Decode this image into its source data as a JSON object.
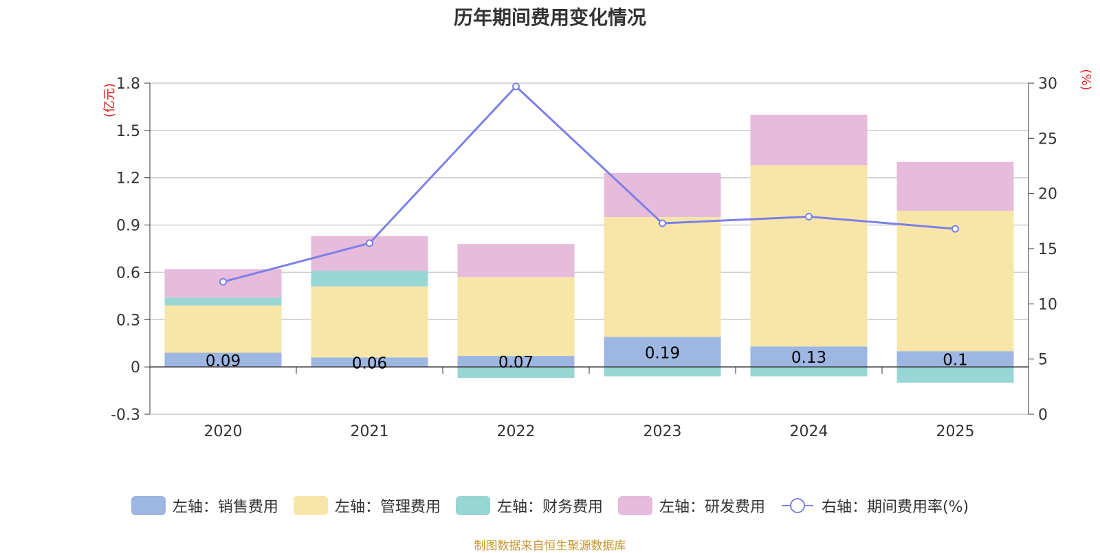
{
  "chart_data": {
    "type": "bar",
    "title": "历年期间费用变化情况",
    "categories": [
      "2020",
      "2021",
      "2022",
      "2023",
      "2024",
      "2025"
    ],
    "left_axis": {
      "label": "(亿元)",
      "range": [
        -0.3,
        1.8
      ],
      "ticks": [
        "-0.3",
        "0",
        "0.3",
        "0.6",
        "0.9",
        "1.2",
        "1.5",
        "1.8"
      ],
      "tick_values": [
        -0.3,
        0,
        0.3,
        0.6,
        0.9,
        1.2,
        1.5,
        1.8
      ]
    },
    "right_axis": {
      "label": "(%)",
      "range": [
        0,
        30
      ],
      "ticks": [
        "0",
        "5",
        "10",
        "15",
        "20",
        "25",
        "30"
      ],
      "tick_values": [
        0,
        5,
        10,
        15,
        20,
        25,
        30
      ]
    },
    "series": [
      {
        "name": "左轴：销售费用",
        "axis": "left",
        "color": "#9db6e2",
        "values": [
          0.09,
          0.06,
          0.07,
          0.19,
          0.13,
          0.1
        ],
        "labels": [
          "0.09",
          "0.06",
          "0.07",
          "0.19",
          "0.13",
          "0.1"
        ]
      },
      {
        "name": "左轴：管理费用",
        "axis": "left",
        "color": "#f7e6a8",
        "values": [
          0.3,
          0.45,
          0.5,
          0.76,
          1.15,
          0.89
        ]
      },
      {
        "name": "左轴：财务费用",
        "axis": "left",
        "color": "#98d5d5",
        "values": [
          0.05,
          0.1,
          -0.07,
          -0.06,
          -0.06,
          -0.1
        ]
      },
      {
        "name": "左轴：研发费用",
        "axis": "left",
        "color": "#e6bbdb",
        "values": [
          0.18,
          0.22,
          0.21,
          0.28,
          0.32,
          0.31
        ]
      },
      {
        "name": "右轴：期间费用率(%)",
        "axis": "right",
        "type": "line",
        "color": "#7b80e8",
        "values": [
          12.0,
          15.5,
          29.7,
          17.3,
          17.9,
          16.8
        ]
      }
    ],
    "grid": true
  },
  "source_note": "制图数据来自恒生聚源数据库"
}
